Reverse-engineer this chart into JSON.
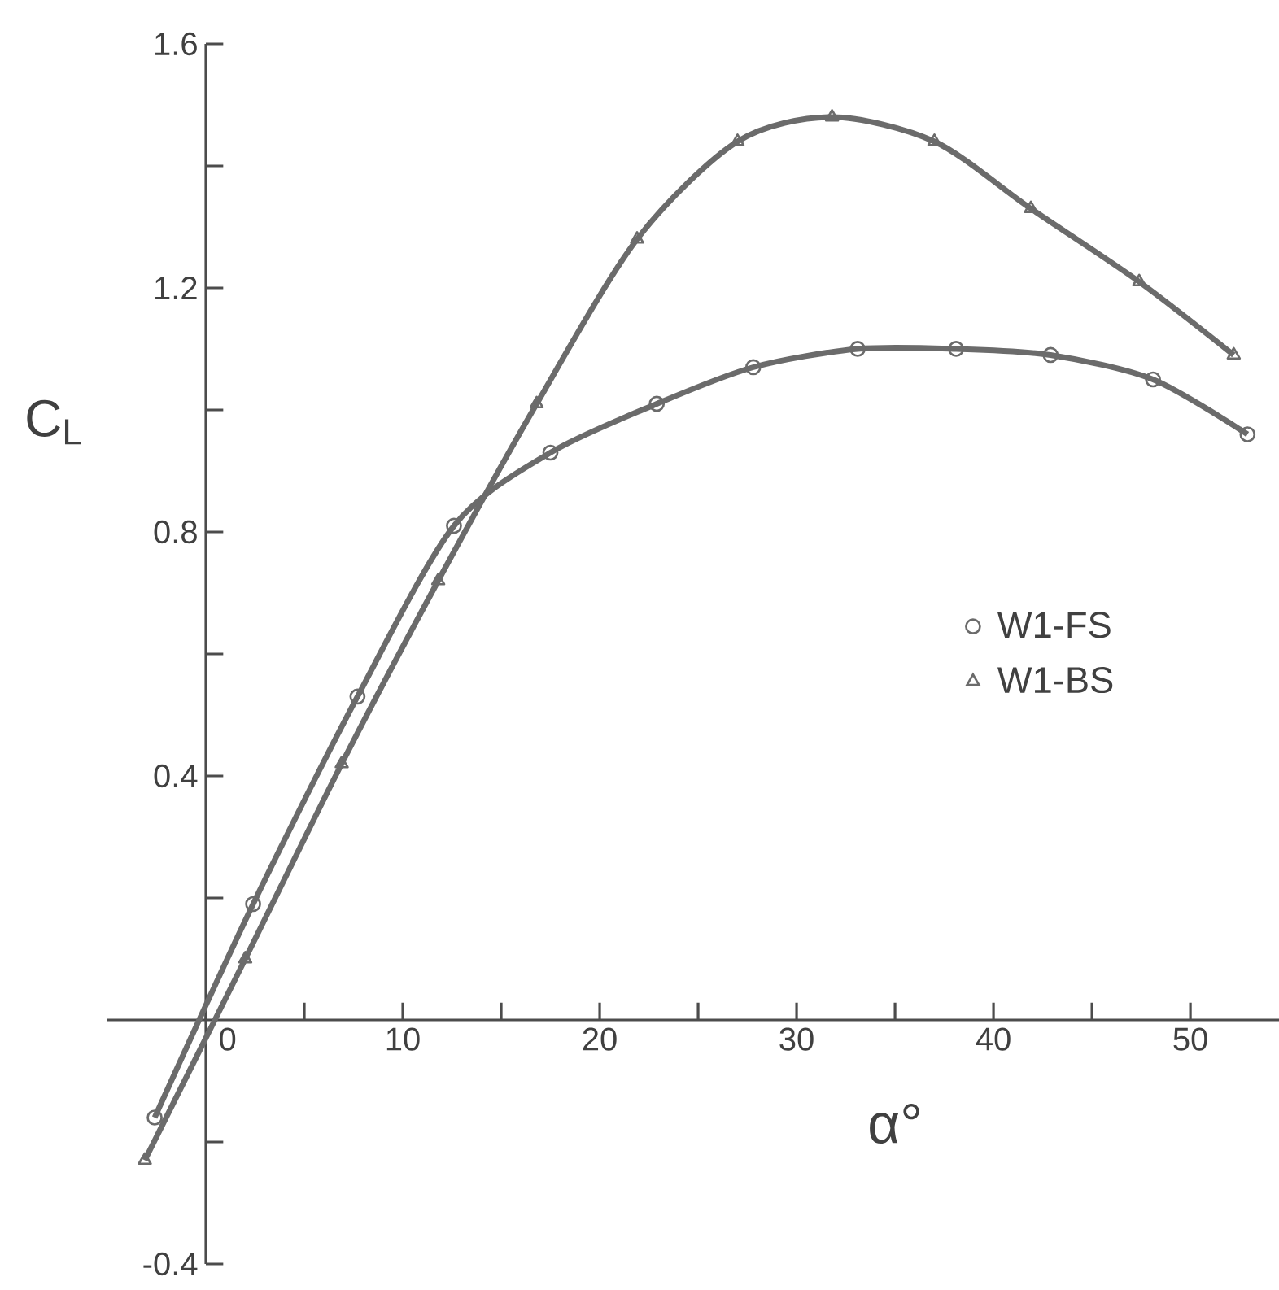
{
  "chart_data": {
    "type": "line",
    "xlabel": "α°",
    "ylabel": "C$_{L}$",
    "xlim": [
      -5,
      54.5
    ],
    "ylim": [
      -0.4,
      1.6
    ],
    "xticks": [
      0,
      {
        "value": 5,
        "label": null
      },
      10,
      {
        "value": 15,
        "label": null
      },
      20,
      {
        "value": 25,
        "label": null
      },
      30,
      {
        "value": 35,
        "label": null
      },
      40,
      {
        "value": 45,
        "label": null
      },
      50
    ],
    "yticks": [
      -0.4,
      {
        "value": -0.2,
        "label": null
      },
      {
        "value": 0,
        "label": null
      },
      {
        "value": 0.2,
        "label": null
      },
      0.4,
      {
        "value": 0.6,
        "label": null
      },
      0.8,
      {
        "value": 1.0,
        "label": null
      },
      1.2,
      {
        "value": 1.4,
        "label": null
      },
      1.6
    ],
    "grid": false,
    "legend": "right",
    "series": [
      {
        "name": "W1-FS",
        "color": "#6b6b6b",
        "marker": "circle",
        "x": [
          -2.6,
          2.4,
          7.7,
          12.6,
          17.5,
          22.9,
          27.8,
          33.1,
          38.1,
          42.9,
          48.1,
          52.9
        ],
        "values": [
          -0.16,
          0.19,
          0.53,
          0.81,
          0.93,
          1.01,
          1.07,
          1.1,
          1.1,
          1.09,
          1.05,
          0.96
        ]
      },
      {
        "name": "W1-BS",
        "color": "#6b6b6b",
        "marker": "triangle",
        "x": [
          -3.1,
          2.0,
          6.9,
          11.8,
          16.8,
          21.9,
          27.0,
          31.8,
          37.0,
          41.9,
          47.4,
          52.2
        ],
        "values": [
          -0.23,
          0.1,
          0.42,
          0.72,
          1.01,
          1.28,
          1.44,
          1.48,
          1.44,
          1.33,
          1.21,
          1.09
        ]
      }
    ]
  }
}
